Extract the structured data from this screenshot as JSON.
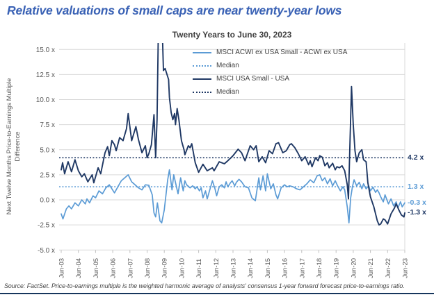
{
  "header": {
    "title": "Relative valuations of small caps are near twenty-year lows"
  },
  "colors": {
    "title_blue": "#3A62B5",
    "footer_rule": "#17365D",
    "grid": "#D9D9D9",
    "axis_text": "#595959",
    "tick_mark": "#BFBFBF"
  },
  "chart_data": {
    "type": "line",
    "title": "Twenty Years to June 30, 2023",
    "ylabel_line1": "Next Twelve Months Price-to-Earnings Multiple",
    "ylabel_line2": "Difference",
    "ylim": [
      -5,
      15
    ],
    "grid": true,
    "legend_position": "top-right-inside",
    "legend_median_label": "Median",
    "y_ticks": [
      {
        "label": "15.0 x",
        "value": 15
      },
      {
        "label": "12.5 x",
        "value": 12.5
      },
      {
        "label": "10.0 x",
        "value": 10
      },
      {
        "label": "7.5 x",
        "value": 7.5
      },
      {
        "label": "5.0 x",
        "value": 5
      },
      {
        "label": "2.5 x",
        "value": 2.5
      },
      {
        "label": "0.0 x",
        "value": 0
      },
      {
        "label": "-2.5 x",
        "value": -2.5
      },
      {
        "label": "-5.0 x",
        "value": -5
      }
    ],
    "x_ticks": [
      "Jun-03",
      "Jun-04",
      "Jun-05",
      "Jun-06",
      "Jun-07",
      "Jun-08",
      "Jun-09",
      "Jun-10",
      "Jun-11",
      "Jun-12",
      "Jun-13",
      "Jun-14",
      "Jun-15",
      "Jun-16",
      "Jun-17",
      "Jun-18",
      "Jun-19",
      "Jun-20",
      "Jun-21",
      "Jun-22",
      "Jun-23"
    ],
    "series": [
      {
        "name": "MSCI ACWI ex USA Small - ACWI ex USA",
        "color": "#5B9BD5",
        "median": 1.3,
        "median_annotation": "1.3 x",
        "end_annotation": "-0.3 x",
        "points": [
          [
            2003.5,
            -1.4
          ],
          [
            2003.6,
            -1.9
          ],
          [
            2003.8,
            -0.9
          ],
          [
            2003.95,
            -0.6
          ],
          [
            2004.1,
            -0.9
          ],
          [
            2004.3,
            -0.3
          ],
          [
            2004.5,
            -0.6
          ],
          [
            2004.7,
            0.0
          ],
          [
            2004.9,
            -0.4
          ],
          [
            2005.0,
            0.1
          ],
          [
            2005.15,
            -0.3
          ],
          [
            2005.35,
            0.4
          ],
          [
            2005.5,
            0.2
          ],
          [
            2005.7,
            0.9
          ],
          [
            2005.9,
            0.6
          ],
          [
            2006.1,
            1.2
          ],
          [
            2006.3,
            1.5
          ],
          [
            2006.6,
            0.7
          ],
          [
            2006.8,
            1.3
          ],
          [
            2007.0,
            1.9
          ],
          [
            2007.2,
            2.2
          ],
          [
            2007.4,
            2.5
          ],
          [
            2007.6,
            1.8
          ],
          [
            2007.8,
            1.5
          ],
          [
            2008.0,
            1.2
          ],
          [
            2008.2,
            1.0
          ],
          [
            2008.4,
            1.5
          ],
          [
            2008.6,
            1.45
          ],
          [
            2008.8,
            0.5
          ],
          [
            2008.9,
            -1.3
          ],
          [
            2009.0,
            -1.7
          ],
          [
            2009.1,
            -0.3
          ],
          [
            2009.25,
            -2.1
          ],
          [
            2009.35,
            -2.3
          ],
          [
            2009.5,
            -1.0
          ],
          [
            2009.7,
            2.0
          ],
          [
            2009.8,
            3.0
          ],
          [
            2009.95,
            1.0
          ],
          [
            2010.05,
            2.5
          ],
          [
            2010.3,
            0.6
          ],
          [
            2010.45,
            2.2
          ],
          [
            2010.6,
            0.9
          ],
          [
            2010.7,
            1.9
          ],
          [
            2010.8,
            1.5
          ],
          [
            2011.0,
            1.2
          ],
          [
            2011.15,
            1.4
          ],
          [
            2011.3,
            1.1
          ],
          [
            2011.4,
            1.3
          ],
          [
            2011.55,
            0.9
          ],
          [
            2011.65,
            1.2
          ],
          [
            2011.75,
            0.2
          ],
          [
            2011.9,
            0.9
          ],
          [
            2012.0,
            0.1
          ],
          [
            2012.2,
            1.3
          ],
          [
            2012.3,
            1.9
          ],
          [
            2012.45,
            1.1
          ],
          [
            2012.55,
            0.4
          ],
          [
            2012.7,
            1.3
          ],
          [
            2012.85,
            1.5
          ],
          [
            2013.0,
            1.2
          ],
          [
            2013.1,
            1.8
          ],
          [
            2013.2,
            1.3
          ],
          [
            2013.35,
            1.7
          ],
          [
            2013.45,
            1.9
          ],
          [
            2013.6,
            1.4
          ],
          [
            2013.7,
            1.75
          ],
          [
            2013.85,
            2.05
          ],
          [
            2014.0,
            1.8
          ],
          [
            2014.2,
            1.3
          ],
          [
            2014.4,
            1.2
          ],
          [
            2014.6,
            0.2
          ],
          [
            2014.8,
            -0.1
          ],
          [
            2015.0,
            2.2
          ],
          [
            2015.1,
            1.0
          ],
          [
            2015.25,
            2.4
          ],
          [
            2015.4,
            0.9
          ],
          [
            2015.5,
            2.6
          ],
          [
            2015.7,
            1.1
          ],
          [
            2015.85,
            1.6
          ],
          [
            2016.0,
            0.5
          ],
          [
            2016.1,
            0.1
          ],
          [
            2016.3,
            1.2
          ],
          [
            2016.5,
            1.5
          ],
          [
            2016.65,
            1.3
          ],
          [
            2016.8,
            1.4
          ],
          [
            2017.0,
            1.3
          ],
          [
            2017.2,
            1.1
          ],
          [
            2017.4,
            1.0
          ],
          [
            2017.6,
            1.3
          ],
          [
            2017.8,
            1.6
          ],
          [
            2018.0,
            2.0
          ],
          [
            2018.2,
            1.7
          ],
          [
            2018.4,
            2.4
          ],
          [
            2018.55,
            2.5
          ],
          [
            2018.7,
            1.9
          ],
          [
            2018.85,
            2.2
          ],
          [
            2019.0,
            1.6
          ],
          [
            2019.15,
            2.1
          ],
          [
            2019.3,
            1.4
          ],
          [
            2019.45,
            1.9
          ],
          [
            2019.6,
            1.35
          ],
          [
            2019.75,
            0.9
          ],
          [
            2019.9,
            1.3
          ],
          [
            2020.0,
            1.0
          ],
          [
            2020.15,
            -0.7
          ],
          [
            2020.25,
            -2.3
          ],
          [
            2020.35,
            0.2
          ],
          [
            2020.45,
            1.3
          ],
          [
            2020.55,
            2.0
          ],
          [
            2020.7,
            1.4
          ],
          [
            2020.85,
            1.75
          ],
          [
            2021.0,
            1.1
          ],
          [
            2021.1,
            1.6
          ],
          [
            2021.25,
            1.1
          ],
          [
            2021.4,
            1.4
          ],
          [
            2021.5,
            0.9
          ],
          [
            2021.65,
            1.25
          ],
          [
            2021.8,
            0.75
          ],
          [
            2021.9,
            1.0
          ],
          [
            2022.0,
            0.7
          ],
          [
            2022.1,
            0.3
          ],
          [
            2022.25,
            -0.2
          ],
          [
            2022.35,
            0.5
          ],
          [
            2022.55,
            -0.4
          ],
          [
            2022.7,
            0.1
          ],
          [
            2022.85,
            -0.6
          ],
          [
            2023.0,
            -0.2
          ],
          [
            2023.1,
            -0.8
          ],
          [
            2023.25,
            -0.2
          ],
          [
            2023.35,
            -0.7
          ],
          [
            2023.5,
            -0.3
          ]
        ]
      },
      {
        "name": "MSCI USA Small - USA",
        "color": "#1F3864",
        "median": 4.2,
        "median_annotation": "4.2 x",
        "end_annotation": "-1.3 x",
        "points": [
          [
            2003.5,
            3.0
          ],
          [
            2003.58,
            3.7
          ],
          [
            2003.7,
            2.6
          ],
          [
            2003.9,
            3.8
          ],
          [
            2004.1,
            2.8
          ],
          [
            2004.3,
            4.0
          ],
          [
            2004.5,
            2.9
          ],
          [
            2004.7,
            2.3
          ],
          [
            2004.85,
            2.6
          ],
          [
            2005.05,
            1.8
          ],
          [
            2005.3,
            2.5
          ],
          [
            2005.4,
            1.7
          ],
          [
            2005.65,
            3.2
          ],
          [
            2005.8,
            2.6
          ],
          [
            2006.05,
            4.7
          ],
          [
            2006.2,
            5.3
          ],
          [
            2006.3,
            4.4
          ],
          [
            2006.45,
            5.9
          ],
          [
            2006.6,
            5.5
          ],
          [
            2006.7,
            4.9
          ],
          [
            2006.9,
            6.2
          ],
          [
            2007.1,
            5.9
          ],
          [
            2007.3,
            7.1
          ],
          [
            2007.4,
            8.6
          ],
          [
            2007.6,
            5.9
          ],
          [
            2007.85,
            7.3
          ],
          [
            2008.0,
            6.0
          ],
          [
            2008.2,
            4.7
          ],
          [
            2008.4,
            5.4
          ],
          [
            2008.5,
            4.2
          ],
          [
            2008.6,
            4.6
          ],
          [
            2008.75,
            5.5
          ],
          [
            2008.9,
            8.5
          ],
          [
            2009.0,
            4.2
          ],
          [
            2009.08,
            8.0
          ],
          [
            2009.15,
            16.5
          ],
          [
            2009.3,
            17.0
          ],
          [
            2009.4,
            16.0
          ],
          [
            2009.45,
            12.9
          ],
          [
            2009.55,
            13.1
          ],
          [
            2009.75,
            12.0
          ],
          [
            2009.8,
            10.2
          ],
          [
            2009.9,
            8.7
          ],
          [
            2010.0,
            8.0
          ],
          [
            2010.1,
            8.6
          ],
          [
            2010.15,
            7.5
          ],
          [
            2010.25,
            9.1
          ],
          [
            2010.35,
            8.0
          ],
          [
            2010.5,
            5.9
          ],
          [
            2010.65,
            5.0
          ],
          [
            2010.7,
            4.5
          ],
          [
            2010.9,
            5.4
          ],
          [
            2011.0,
            5.2
          ],
          [
            2011.1,
            5.6
          ],
          [
            2011.3,
            3.7
          ],
          [
            2011.5,
            2.75
          ],
          [
            2011.75,
            3.55
          ],
          [
            2012.0,
            2.9
          ],
          [
            2012.3,
            3.2
          ],
          [
            2012.4,
            2.9
          ],
          [
            2012.7,
            3.8
          ],
          [
            2013.0,
            3.6
          ],
          [
            2013.2,
            3.9
          ],
          [
            2013.5,
            4.4
          ],
          [
            2013.8,
            5.05
          ],
          [
            2014.0,
            4.7
          ],
          [
            2014.2,
            3.9
          ],
          [
            2014.5,
            5.4
          ],
          [
            2014.7,
            5.0
          ],
          [
            2014.85,
            5.4
          ],
          [
            2015.0,
            3.8
          ],
          [
            2015.2,
            4.3
          ],
          [
            2015.4,
            3.7
          ],
          [
            2015.6,
            4.9
          ],
          [
            2015.8,
            4.6
          ],
          [
            2016.0,
            5.6
          ],
          [
            2016.15,
            5.7
          ],
          [
            2016.4,
            4.7
          ],
          [
            2016.6,
            4.9
          ],
          [
            2016.8,
            5.5
          ],
          [
            2016.9,
            5.6
          ],
          [
            2017.1,
            5.2
          ],
          [
            2017.3,
            4.6
          ],
          [
            2017.5,
            3.9
          ],
          [
            2017.7,
            4.3
          ],
          [
            2017.9,
            3.5
          ],
          [
            2018.0,
            3.9
          ],
          [
            2018.1,
            3.3
          ],
          [
            2018.3,
            4.2
          ],
          [
            2018.45,
            3.9
          ],
          [
            2018.55,
            4.4
          ],
          [
            2018.7,
            4.25
          ],
          [
            2018.85,
            3.4
          ],
          [
            2019.0,
            3.7
          ],
          [
            2019.1,
            3.2
          ],
          [
            2019.3,
            3.65
          ],
          [
            2019.45,
            3.0
          ],
          [
            2019.55,
            3.3
          ],
          [
            2019.7,
            3.2
          ],
          [
            2019.85,
            3.4
          ],
          [
            2020.0,
            2.9
          ],
          [
            2020.15,
            1.5
          ],
          [
            2020.22,
            0.1
          ],
          [
            2020.4,
            11.3
          ],
          [
            2020.5,
            7.5
          ],
          [
            2020.6,
            4.9
          ],
          [
            2020.7,
            3.8
          ],
          [
            2020.85,
            4.7
          ],
          [
            2021.0,
            5.0
          ],
          [
            2021.1,
            4.0
          ],
          [
            2021.25,
            3.8
          ],
          [
            2021.35,
            1.7
          ],
          [
            2021.5,
            0.3
          ],
          [
            2021.7,
            -0.7
          ],
          [
            2021.9,
            -2.1
          ],
          [
            2022.0,
            -2.5
          ],
          [
            2022.1,
            -2.4
          ],
          [
            2022.25,
            -1.9
          ],
          [
            2022.35,
            -2.0
          ],
          [
            2022.5,
            -2.4
          ],
          [
            2022.7,
            -1.4
          ],
          [
            2022.9,
            -0.8
          ],
          [
            2023.0,
            -0.4
          ],
          [
            2023.15,
            -1.0
          ],
          [
            2023.3,
            -1.5
          ],
          [
            2023.45,
            -1.7
          ],
          [
            2023.5,
            -1.3
          ]
        ]
      }
    ]
  },
  "footer": {
    "source": "Source: FactSet. Price-to-earnings multiple is the weighted harmonic average of analysts' consensus 1-year forward forecast price-to-earnings ratio."
  }
}
